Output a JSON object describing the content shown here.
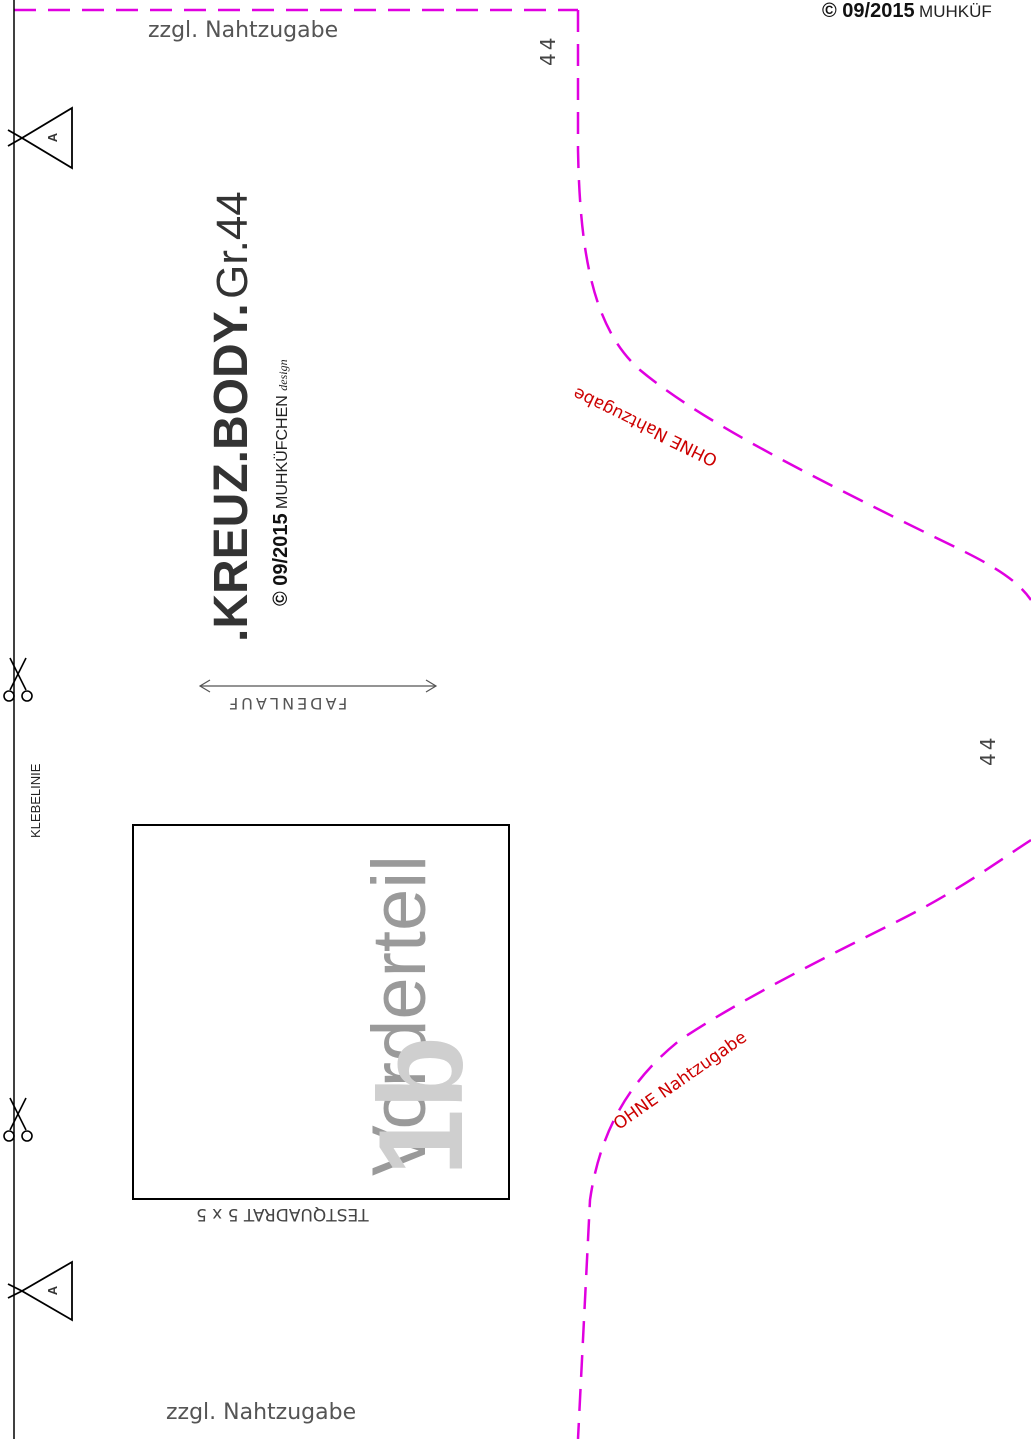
{
  "corner": {
    "copyright": "© 09/2015",
    "brand": "MUHKÜF"
  },
  "seam_allowance_top": "zzgl. Nahtzugabe",
  "seam_allowance_bottom": "zzgl. Nahtzugabe",
  "size_marker_top": "44",
  "size_marker_middle": "44",
  "title": {
    "name": ".KREUZ.BODY.",
    "size": "Gr.44"
  },
  "subtitle": {
    "copyright": "© 09/2015",
    "brand": "MUHKÜFCHEN",
    "design": "design"
  },
  "grainline_label": "FADENLAUF",
  "piece": {
    "name": "Vorderteil",
    "number": "1b"
  },
  "test_square": "TESTQUADRAT 5 x 5",
  "glue_line": "KLEBELINIE",
  "notch_marker": "A",
  "no_allowance_top": "OHNE Nahtzugabe",
  "no_allowance_bottom": "OHNE Nahtzugabe",
  "colors": {
    "cut_line": "#e000e0",
    "warning_text": "#cc0000",
    "piece_text": "#9a9a9a"
  }
}
